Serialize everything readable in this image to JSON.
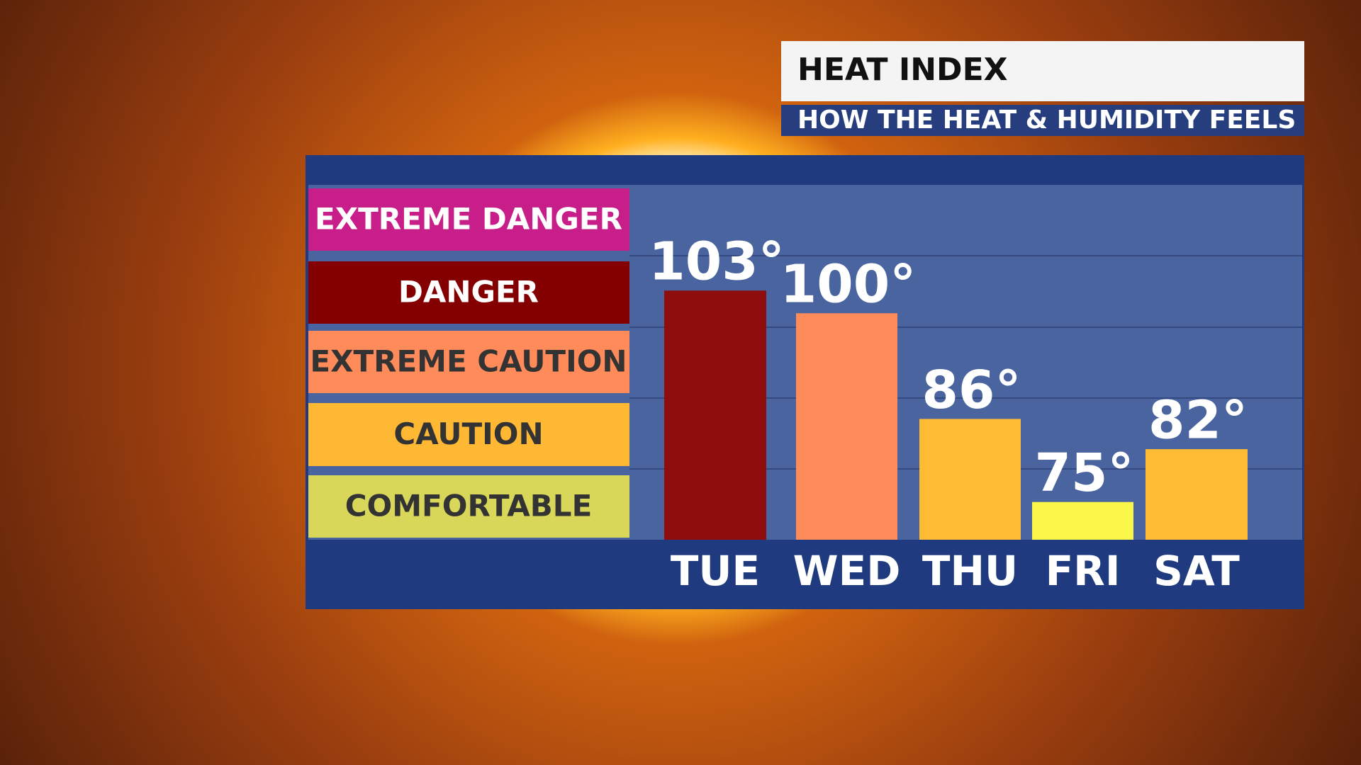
{
  "chart_data": {
    "type": "bar",
    "title": "HEAT INDEX",
    "subtitle": "HOW THE HEAT & HUMIDITY FEELS",
    "categories": [
      "TUE",
      "WED",
      "THU",
      "FRI",
      "SAT"
    ],
    "values": [
      103,
      100,
      86,
      75,
      82
    ],
    "value_labels": [
      "103°",
      "100°",
      "86°",
      "75°",
      "82°"
    ],
    "colors": [
      "#8e0e0e",
      "#ff8b5a",
      "#ffbb33",
      "#fbf64a",
      "#ffbb33"
    ],
    "ylim": [
      70,
      117
    ],
    "legend": [
      {
        "name": "EXTREME DANGER",
        "color": "#c81e8a",
        "text_color": "#ffffff"
      },
      {
        "name": "DANGER",
        "color": "#840000",
        "text_color": "#ffffff"
      },
      {
        "name": "EXTREME CAUTION",
        "color": "#ff8b5a",
        "text_color": "#333333"
      },
      {
        "name": "CAUTION",
        "color": "#ffb833",
        "text_color": "#333333"
      },
      {
        "name": "COMFORTABLE",
        "color": "#d8d75a",
        "text_color": "#333333"
      }
    ]
  }
}
